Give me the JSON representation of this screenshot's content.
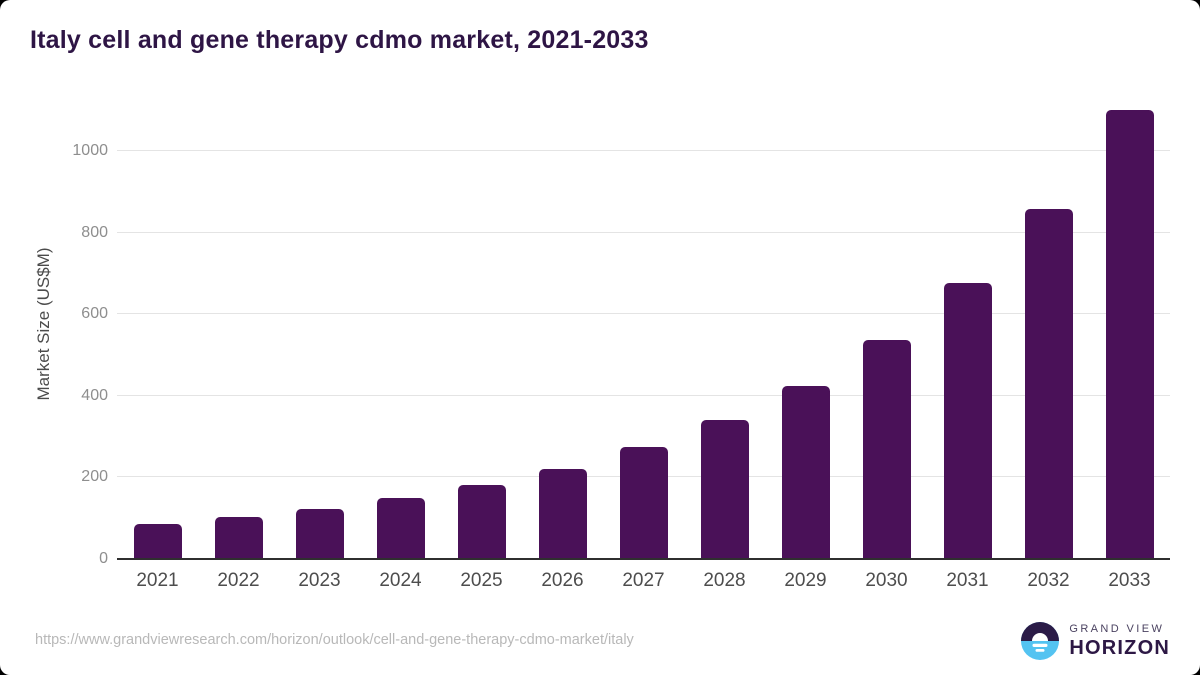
{
  "chart_data": {
    "type": "bar",
    "title": "Italy cell and gene therapy cdmo market, 2021-2033",
    "categories": [
      "2021",
      "2022",
      "2023",
      "2024",
      "2025",
      "2026",
      "2027",
      "2028",
      "2029",
      "2030",
      "2031",
      "2032",
      "2033"
    ],
    "values": [
      85,
      102,
      122,
      149,
      182,
      220,
      275,
      341,
      425,
      536,
      676,
      857,
      1100
    ],
    "xlabel": "",
    "ylabel": "Market Size (US$M)",
    "ylim": [
      0,
      1150
    ],
    "yticks": [
      0,
      200,
      400,
      600,
      800,
      1000
    ],
    "grid": true,
    "legend": "none",
    "bar_color": "#4a1158"
  },
  "source_url": "https://www.grandviewresearch.com/horizon/outlook/cell-and-gene-therapy-cdmo-market/italy",
  "branding": {
    "line1": "GRAND VIEW",
    "line2": "HORIZON"
  },
  "colors": {
    "bar": "#4a1158",
    "title_text": "#2e1545",
    "logo_dark": "#2b1b47",
    "logo_blue": "#54c3f1",
    "gridline": "#e4e4e4",
    "axis_line": "#2f2f2f",
    "y_tick_text": "#8e8e8e",
    "x_tick_text": "#4d4d4d",
    "source_text": "#b8b8b8"
  }
}
